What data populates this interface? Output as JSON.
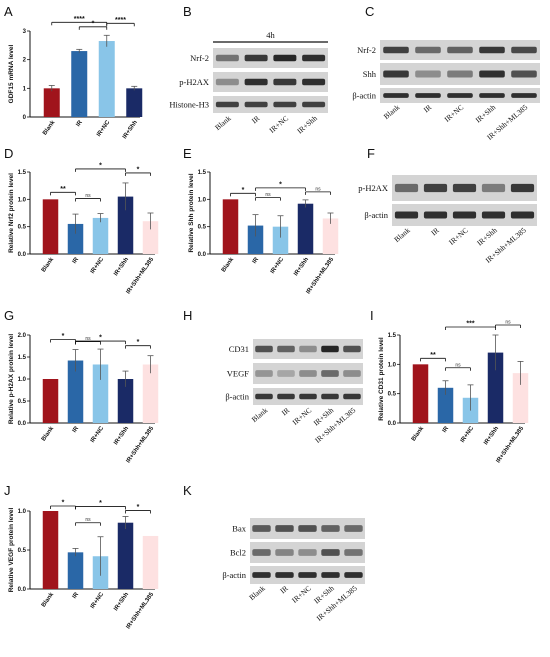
{
  "panels": {
    "A": "A",
    "B": "B",
    "C": "C",
    "D": "D",
    "E": "E",
    "F": "F",
    "G": "G",
    "H": "H",
    "I": "I",
    "J": "J",
    "K": "K"
  },
  "colors": {
    "Blank": "#a0141c",
    "IR": "#2a67a7",
    "IR+NC": "#89c5e8",
    "IR+Shh": "#1a2a66",
    "IR+Shh+ML385": "#fde1e1"
  },
  "chart_data": [
    {
      "id": "A",
      "type": "bar",
      "categories": [
        "Blank",
        "IR",
        "IR+NC",
        "IR+Shh"
      ],
      "values": [
        1.0,
        2.3,
        2.65,
        1.0
      ],
      "errors": [
        0.1,
        0.06,
        0.2,
        0.07
      ],
      "ylabel": "GDF15 mRNA level",
      "ylim": [
        0,
        3.0
      ],
      "yticks": [
        "0",
        "1",
        "2",
        "3"
      ],
      "significance": [
        "****",
        "*",
        "****"
      ]
    },
    {
      "id": "D",
      "type": "bar",
      "categories": [
        "Blank",
        "IR",
        "IR+NC",
        "IR+Shh",
        "IR+Shh+ML385"
      ],
      "values": [
        1.0,
        0.55,
        0.66,
        1.05,
        0.6
      ],
      "errors": [
        0.0,
        0.18,
        0.08,
        0.25,
        0.15
      ],
      "ylabel": "Relative Nrf2 protein level",
      "ylim": [
        0,
        1.5
      ],
      "yticks": [
        "0.0",
        "0.5",
        "1.0",
        "1.5"
      ],
      "significance": [
        "**",
        "ns",
        "*",
        "*"
      ]
    },
    {
      "id": "E",
      "type": "bar",
      "categories": [
        "Blank",
        "IR",
        "IR+NC",
        "IR+Shh",
        "IR+Shh+ML385"
      ],
      "values": [
        1.0,
        0.52,
        0.5,
        0.92,
        0.65
      ],
      "errors": [
        0.0,
        0.2,
        0.2,
        0.07,
        0.1
      ],
      "ylabel": "Relative Shh protein level",
      "ylim": [
        0,
        1.5
      ],
      "yticks": [
        "0.0",
        "0.5",
        "1.0",
        "1.5"
      ],
      "significance": [
        "*",
        "ns",
        "*",
        "ns"
      ]
    },
    {
      "id": "G",
      "type": "bar",
      "categories": [
        "Blank",
        "IR",
        "IR+NC",
        "IR+Shh",
        "IR+Shh+ML385"
      ],
      "values": [
        1.0,
        1.42,
        1.33,
        1.0,
        1.33
      ],
      "errors": [
        0.0,
        0.25,
        0.35,
        0.18,
        0.2
      ],
      "ylabel": "Relative p-H2AX protein level",
      "ylim": [
        0,
        2.0
      ],
      "yticks": [
        "0.0",
        "0.5",
        "1.0",
        "1.5",
        "2.0"
      ],
      "significance": [
        "*",
        "ns",
        "*",
        "*"
      ]
    },
    {
      "id": "I",
      "type": "bar",
      "categories": [
        "Blank",
        "IR",
        "IR+NC",
        "IR+Shh",
        "IR+Shh+ML385"
      ],
      "values": [
        1.0,
        0.6,
        0.43,
        1.2,
        0.85
      ],
      "errors": [
        0.0,
        0.12,
        0.22,
        0.3,
        0.2
      ],
      "ylabel": "Relative CD31 protein level",
      "ylim": [
        0,
        1.5
      ],
      "yticks": [
        "0.0",
        "0.5",
        "1.0",
        "1.5"
      ],
      "significance": [
        "**",
        "ns",
        "***",
        "ns"
      ]
    },
    {
      "id": "J",
      "type": "bar",
      "categories": [
        "Blank",
        "IR",
        "IR+NC",
        "IR+Shh",
        "IR+Shh+ML385"
      ],
      "values": [
        1.0,
        0.47,
        0.42,
        0.85,
        0.68
      ],
      "errors": [
        0.0,
        0.05,
        0.25,
        0.08,
        0.0
      ],
      "ylabel": "Relative VEGF protein level",
      "ylim": [
        0,
        1.0
      ],
      "yticks": [
        "0.0",
        "0.5",
        "1.0"
      ],
      "significance": [
        "*",
        "ns",
        "*",
        "*"
      ]
    }
  ],
  "blots": [
    {
      "id": "B",
      "header": "4h",
      "rows": [
        "Nrf-2",
        "p-H2AX",
        "Histone-H3"
      ],
      "lanes": [
        "Blank",
        "IR",
        "IR+NC",
        "IR+Shh"
      ]
    },
    {
      "id": "C",
      "header": "",
      "rows": [
        "Nrf-2",
        "Shh",
        "β-actin"
      ],
      "lanes": [
        "Blank",
        "IR",
        "IR+NC",
        "IR+Shh",
        "IR+Shh+ML385"
      ]
    },
    {
      "id": "F",
      "header": "",
      "rows": [
        "p-H2AX",
        "β-actin"
      ],
      "lanes": [
        "Blank",
        "IR",
        "IR+NC",
        "IR+Shh",
        "IR+Shh+ML385"
      ]
    },
    {
      "id": "H",
      "header": "",
      "rows": [
        "CD31",
        "VEGF",
        "β-actin"
      ],
      "lanes": [
        "Blank",
        "IR",
        "IR+NC",
        "IR+Shh",
        "IR+Shh+ML385"
      ]
    },
    {
      "id": "K",
      "header": "",
      "rows": [
        "Bax",
        "Bcl2",
        "β-actin"
      ],
      "lanes": [
        "Blank",
        "IR",
        "IR+NC",
        "IR+Shh",
        "IR+Shh+ML385"
      ]
    }
  ]
}
